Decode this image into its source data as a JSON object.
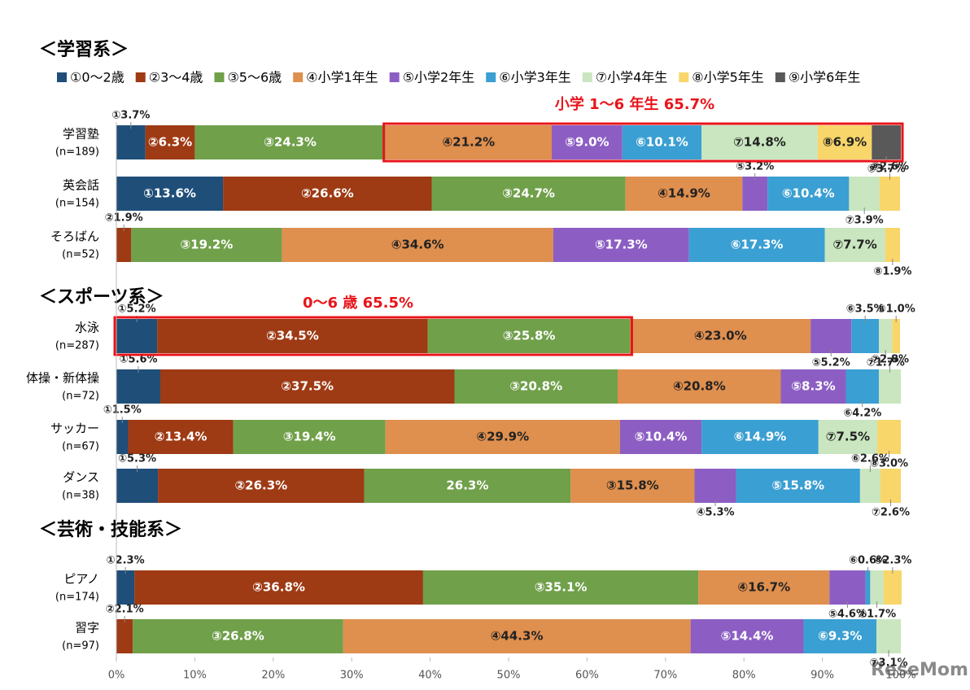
{
  "chart_data": {
    "type": "stacked-bar-horizontal",
    "sections": [
      {
        "title": "＜学習系＞",
        "categories": [
          "学習塾",
          "英会話",
          "そろばん"
        ],
        "sample_sizes": [
          "(n=189)",
          "(n=154)",
          "(n=52)"
        ]
      },
      {
        "title": "＜スポーツ系＞",
        "categories": [
          "水泳",
          "体操・新体操",
          "サッカー",
          "ダンス"
        ],
        "sample_sizes": [
          "(n=287)",
          "(n=72)",
          "(n=67)",
          "(n=38)"
        ]
      },
      {
        "title": "＜芸術・技能系＞",
        "categories": [
          "ピアノ",
          "習字"
        ],
        "sample_sizes": [
          "(n=174)",
          "(n=97)"
        ]
      }
    ],
    "series": [
      {
        "name": "①0～2歳",
        "color": "#1f4e79",
        "values": [
          3.7,
          13.6,
          null,
          5.2,
          5.6,
          1.5,
          5.3,
          2.3,
          null
        ],
        "value_labels": [
          "①3.7%",
          "①13.6%",
          null,
          "①5.2%",
          "①5.6%",
          "①1.5%",
          "①5.3%",
          "①2.3%",
          null
        ]
      },
      {
        "name": "②3～4歳",
        "color": "#9e3a14",
        "values": [
          6.3,
          26.6,
          1.9,
          34.5,
          37.5,
          13.4,
          26.3,
          36.8,
          2.1
        ],
        "value_labels": [
          "②6.3%",
          "②26.6%",
          "②1.9%",
          "②34.5%",
          "②37.5%",
          "②13.4%",
          "②26.3%",
          "②36.8%",
          "②2.1%"
        ]
      },
      {
        "name": "③5～6歳",
        "color": "#70a04a",
        "values": [
          24.3,
          24.7,
          19.2,
          25.8,
          20.8,
          19.4,
          26.3,
          35.1,
          26.8
        ],
        "value_labels": [
          "③24.3%",
          "③24.7%",
          "③19.2%",
          "③25.8%",
          "③20.8%",
          "③19.4%",
          "26.3%",
          "③35.1%",
          "③26.8%"
        ]
      },
      {
        "name": "④小学1年生",
        "color": "#df8f4e",
        "values": [
          21.2,
          14.9,
          34.6,
          23.0,
          20.8,
          29.9,
          15.8,
          16.7,
          44.3
        ],
        "value_labels": [
          "④21.2%",
          "④14.9%",
          "④34.6%",
          "④23.0%",
          "④20.8%",
          "④29.9%",
          "③15.8%",
          "④16.7%",
          "④44.3%"
        ]
      },
      {
        "name": "⑤小学2年生",
        "color": "#8c5ec3",
        "values": [
          9.0,
          3.2,
          17.3,
          5.2,
          8.3,
          10.4,
          5.3,
          4.6,
          14.4
        ],
        "value_labels": [
          "⑤9.0%",
          "⑤3.2%",
          "⑤17.3%",
          "⑤5.2%",
          "⑤8.3%",
          "⑤10.4%",
          "④5.3%",
          "⑤4.6%",
          "⑤14.4%"
        ]
      },
      {
        "name": "⑥小学3年生",
        "color": "#3a9fd2",
        "values": [
          10.1,
          10.4,
          17.3,
          3.5,
          4.2,
          14.9,
          15.8,
          0.6,
          9.3
        ],
        "value_labels": [
          "⑥10.1%",
          "⑥10.4%",
          "⑥17.3%",
          "⑥3.5%",
          "⑥4.2%",
          "⑥14.9%",
          "⑤15.8%",
          "⑥0.6%",
          "⑥9.3%"
        ]
      },
      {
        "name": "⑦小学4年生",
        "color": "#c9e6c0",
        "values": [
          14.8,
          3.9,
          7.7,
          1.7,
          2.8,
          7.5,
          2.6,
          1.7,
          3.1
        ],
        "value_labels": [
          "⑦14.8%",
          "⑦3.9%",
          "⑦7.7%",
          "⑦1.7%",
          "⑦2.8%",
          "⑦7.5%",
          "⑥2.6%",
          "⑦1.7%",
          "⑦3.1%"
        ]
      },
      {
        "name": "⑧小学5年生",
        "color": "#f8d66a",
        "values": [
          6.9,
          2.6,
          1.9,
          1.0,
          null,
          3.0,
          2.6,
          2.3,
          null
        ],
        "value_labels": [
          "⑧6.9%",
          "⑧2.6%",
          "⑧1.9%",
          "⑧1.0%",
          null,
          "⑧3.0%",
          "⑦2.6%",
          "⑧2.3%",
          null
        ]
      },
      {
        "name": "⑨小学6年生",
        "color": "#595959",
        "values": [
          3.7,
          null,
          null,
          null,
          null,
          null,
          null,
          null,
          null
        ],
        "value_labels": [
          "⑨3.7%",
          null,
          null,
          null,
          null,
          null,
          null,
          null,
          null
        ]
      }
    ],
    "annotations": [
      "小学 1～6 年生  65.7%",
      "0～6 歳  65.5%"
    ],
    "xlim": [
      0,
      100
    ],
    "xticks": [
      {
        "value": 0,
        "label": "0%"
      },
      {
        "value": 10,
        "label": "10%"
      },
      {
        "value": 20,
        "label": "20%"
      },
      {
        "value": 30,
        "label": "30%"
      },
      {
        "value": 40,
        "label": "40%"
      },
      {
        "value": 50,
        "label": "50%"
      },
      {
        "value": 60,
        "label": "60%"
      },
      {
        "value": 70,
        "label": "70%"
      },
      {
        "value": 80,
        "label": "80%"
      },
      {
        "value": 90,
        "label": "90%"
      },
      {
        "value": 100,
        "label": "100%"
      }
    ],
    "grid": false,
    "watermark": "ReseMom"
  }
}
